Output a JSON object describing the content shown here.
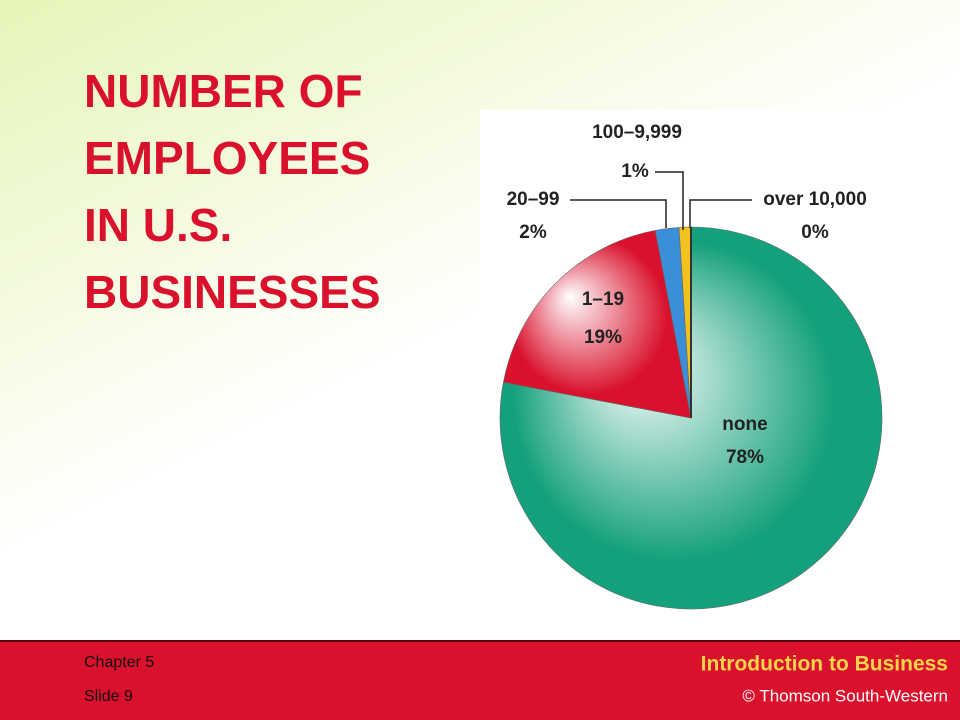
{
  "chart_data": {
    "type": "pie",
    "title": [
      "NUMBER OF",
      "EMPLOYEES",
      "IN U.S.",
      "BUSINESSES"
    ],
    "categories": [
      "none",
      "1–19",
      "20–99",
      "100–9,999",
      "over 10,000"
    ],
    "values": [
      78,
      19,
      2,
      1,
      0
    ],
    "value_labels": [
      "78%",
      "19%",
      "2%",
      "1%",
      "0%"
    ],
    "colors": [
      "#14a07c",
      "#d9112c",
      "#3a8fd8",
      "#f2c21f",
      "#333333"
    ]
  },
  "footer": {
    "chapter": "Chapter 5",
    "slide": "Slide 9",
    "course": "Introduction to Business",
    "copyright": "© Thomson South-Western"
  }
}
